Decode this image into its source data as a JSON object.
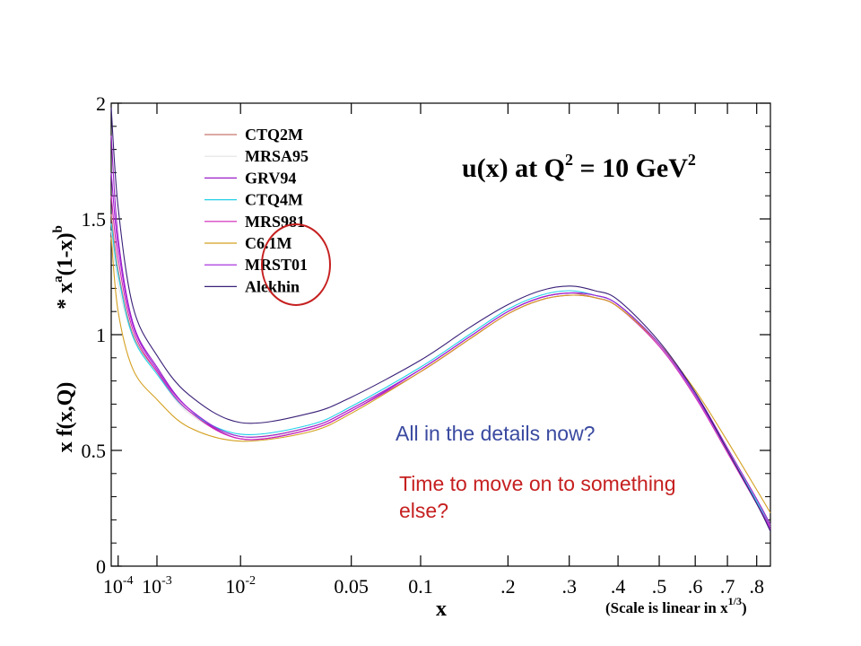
{
  "chart_data": {
    "type": "line",
    "title": "u(x) at Q",
    "title_sup_1": "2",
    "title_mid": " = 10 GeV",
    "title_sup_2": "2",
    "ylabel_main": "x f(x,Q)",
    "ylabel_sub": "* x",
    "ylabel_sup_a": "a",
    "ylabel_mid": "(1-x)",
    "ylabel_sup_b": "b",
    "xlabel": "x",
    "scale_note": "(Scale is linear in x",
    "scale_note_sup": "1/3",
    "scale_note_end": ")",
    "xscale": "x^(1/3)",
    "xlim": [
      5e-05,
      0.85
    ],
    "ylim": [
      0,
      2
    ],
    "grid": false,
    "legend_position": "top-left",
    "y_ticks": [
      {
        "value": 0,
        "label": "0"
      },
      {
        "value": 0.5,
        "label": "0.5"
      },
      {
        "value": 1,
        "label": "1"
      },
      {
        "value": 1.5,
        "label": "1.5"
      },
      {
        "value": 2,
        "label": "2"
      }
    ],
    "x_ticks": [
      {
        "value": 0.0001,
        "label": "10",
        "sup": "-4"
      },
      {
        "value": 0.001,
        "label": "10",
        "sup": "-3"
      },
      {
        "value": 0.01,
        "label": "10",
        "sup": "-2"
      },
      {
        "value": 0.05,
        "label": "0.05"
      },
      {
        "value": 0.1,
        "label": "0.1"
      },
      {
        "value": 0.2,
        "label": ".2"
      },
      {
        "value": 0.3,
        "label": ".3"
      },
      {
        "value": 0.4,
        "label": ".4"
      },
      {
        "value": 0.5,
        "label": ".5"
      },
      {
        "value": 0.6,
        "label": ".6"
      },
      {
        "value": 0.7,
        "label": ".7"
      },
      {
        "value": 0.8,
        "label": ".8"
      }
    ],
    "x": [
      5e-05,
      0.0001,
      0.0003,
      0.001,
      0.003,
      0.01,
      0.03,
      0.05,
      0.1,
      0.15,
      0.2,
      0.25,
      0.3,
      0.35,
      0.4,
      0.5,
      0.6,
      0.7,
      0.8,
      0.85
    ],
    "series": [
      {
        "name": "CTQ2M",
        "color": "#c8786e",
        "values": [
          1.52,
          1.28,
          1.0,
          0.84,
          0.67,
          0.56,
          0.6,
          0.68,
          0.85,
          0.99,
          1.1,
          1.16,
          1.18,
          1.16,
          1.12,
          0.95,
          0.74,
          0.5,
          0.28,
          0.18
        ]
      },
      {
        "name": "MRSA95",
        "color": "#e4e4e4",
        "values": [
          1.45,
          1.22,
          0.99,
          0.83,
          0.66,
          0.56,
          0.59,
          0.67,
          0.84,
          0.98,
          1.09,
          1.15,
          1.17,
          1.16,
          1.12,
          0.95,
          0.74,
          0.5,
          0.28,
          0.18
        ]
      },
      {
        "name": "GRV94",
        "color": "#9a1fc8",
        "values": [
          1.86,
          1.42,
          1.05,
          0.86,
          0.68,
          0.55,
          0.59,
          0.67,
          0.85,
          0.99,
          1.1,
          1.16,
          1.18,
          1.17,
          1.13,
          0.96,
          0.75,
          0.51,
          0.29,
          0.18
        ]
      },
      {
        "name": "CTQ4M",
        "color": "#22d0e8",
        "values": [
          1.48,
          1.26,
          0.99,
          0.83,
          0.67,
          0.57,
          0.61,
          0.69,
          0.86,
          1.0,
          1.11,
          1.17,
          1.19,
          1.17,
          1.13,
          0.96,
          0.74,
          0.5,
          0.28,
          0.17
        ]
      },
      {
        "name": "MRS981",
        "color": "#d021b8",
        "values": [
          1.6,
          1.33,
          1.02,
          0.84,
          0.67,
          0.55,
          0.59,
          0.67,
          0.84,
          0.98,
          1.09,
          1.15,
          1.17,
          1.16,
          1.12,
          0.95,
          0.73,
          0.49,
          0.27,
          0.17
        ]
      },
      {
        "name": "C6.1M",
        "color": "#d4a020",
        "values": [
          1.42,
          1.1,
          0.85,
          0.72,
          0.6,
          0.54,
          0.58,
          0.66,
          0.84,
          0.98,
          1.09,
          1.15,
          1.17,
          1.16,
          1.12,
          0.96,
          0.76,
          0.54,
          0.33,
          0.23
        ]
      },
      {
        "name": "MRST01",
        "color": "#a01fd8",
        "values": [
          1.7,
          1.38,
          1.04,
          0.85,
          0.68,
          0.56,
          0.6,
          0.68,
          0.85,
          0.99,
          1.1,
          1.16,
          1.18,
          1.17,
          1.13,
          0.96,
          0.74,
          0.5,
          0.27,
          0.16
        ]
      },
      {
        "name": "Alekhin",
        "color": "#3a2078",
        "values": [
          1.98,
          1.55,
          1.12,
          0.91,
          0.74,
          0.62,
          0.66,
          0.73,
          0.89,
          1.03,
          1.13,
          1.19,
          1.21,
          1.19,
          1.15,
          0.97,
          0.75,
          0.5,
          0.27,
          0.15
        ]
      }
    ]
  },
  "annotations": {
    "note_blue": "All in the details now?",
    "note_red": "Time to move on to something else?",
    "highlight": "red-ellipse-around-legend"
  },
  "colors": {
    "note_blue": "#3a4aa0",
    "note_red": "#c62020",
    "highlight": "#c62020",
    "axis": "#000000"
  }
}
